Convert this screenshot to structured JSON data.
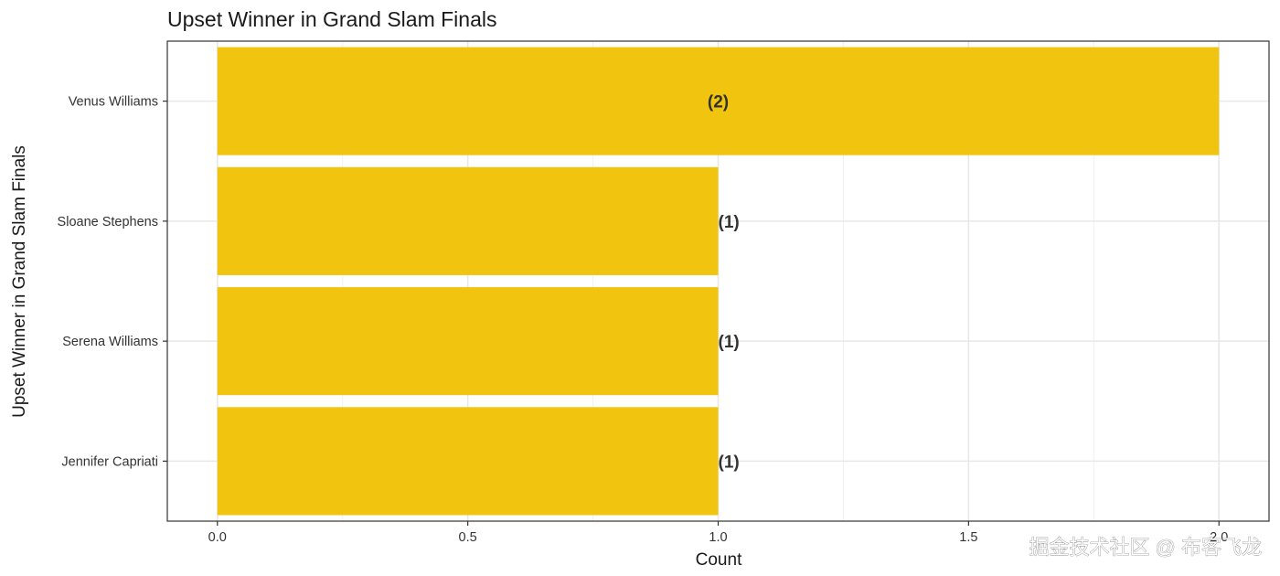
{
  "chart_data": {
    "type": "bar",
    "orientation": "horizontal",
    "title": "Upset Winner in Grand Slam Finals",
    "xlabel": "Count",
    "ylabel": "Upset Winner in Grand Slam Finals",
    "categories": [
      "Venus Williams",
      "Sloane Stephens",
      "Serena Williams",
      "Jennifer Capriati"
    ],
    "values": [
      2,
      1,
      1,
      1
    ],
    "data_labels": [
      "(2)",
      "(1)",
      "(1)",
      "(1)"
    ],
    "xlim": [
      -0.1,
      2.1
    ],
    "x_ticks": [
      0.0,
      0.5,
      1.0,
      1.5,
      2.0
    ],
    "x_tick_labels": [
      "0.0",
      "0.5",
      "1.0",
      "1.5",
      "2.0"
    ],
    "bar_color": "#F1C40F",
    "grid": true,
    "legend": "none"
  },
  "watermark": "掘金技术社区 @ 布客飞龙"
}
